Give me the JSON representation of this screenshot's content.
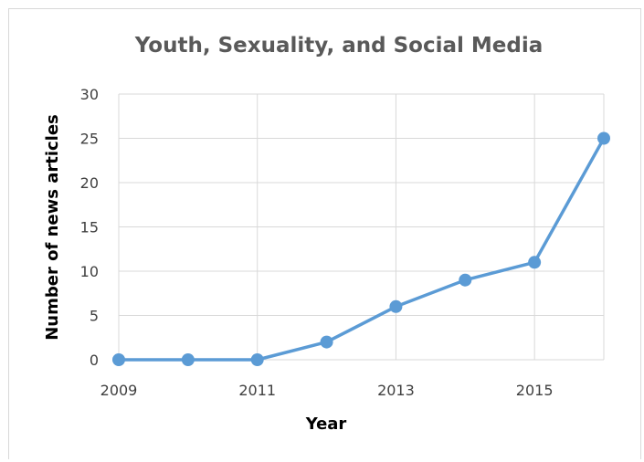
{
  "chart_data": {
    "type": "line",
    "title": "Youth, Sexuality, and Social Media",
    "xlabel": "Year",
    "ylabel": "Number of news articles",
    "x": [
      2009,
      2010,
      2011,
      2012,
      2013,
      2014,
      2015,
      2016
    ],
    "series": [
      {
        "values": [
          0,
          0,
          0,
          2,
          6,
          9,
          11,
          25
        ]
      }
    ],
    "x_ticks": [
      "2009",
      "2011",
      "2013",
      "2015"
    ],
    "y_ticks": [
      "0",
      "5",
      "10",
      "15",
      "20",
      "25",
      "30"
    ],
    "xlim": [
      2009,
      2016
    ],
    "ylim": [
      0,
      30
    ],
    "grid": true,
    "legend": "none",
    "colors": {
      "series": "#5b9bd5",
      "grid": "#d9d9d9",
      "title": "#595959",
      "tick": "#404040"
    }
  }
}
